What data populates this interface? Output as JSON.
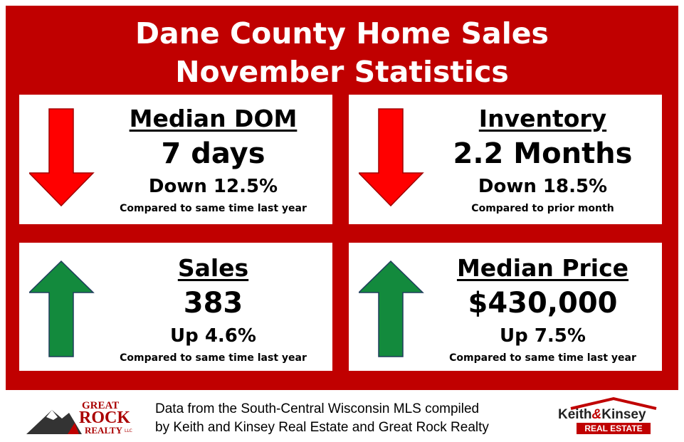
{
  "header": {
    "title_line_1": "Dane County Home Sales",
    "title_line_2": "November Statistics"
  },
  "cards": [
    {
      "title": "Median DOM",
      "value": "7 days",
      "change": "Down 12.5%",
      "note": "Compared to same time last year"
    },
    {
      "title": "Inventory",
      "value": "2.2 Months",
      "change": "Down 18.5%",
      "note": "Compared to prior month"
    },
    {
      "title": "Sales",
      "value": "383",
      "change": "Up 4.6%",
      "note": "Compared to same time last year"
    },
    {
      "title": "Median Price",
      "value": "$430,000",
      "change": "Up 7.5%",
      "note": "Compared to same time last year"
    }
  ],
  "footer": {
    "source_line_1": "Data from the South-Central Wisconsin MLS compiled",
    "source_line_2": "by Keith and Kinsey Real Estate and Great Rock Realty",
    "logo_left": {
      "line_1": "GREAT",
      "line_2": "ROCK",
      "line_3": "REALTY",
      "suffix": "LLC"
    },
    "logo_right": {
      "name_1": "Keith",
      "amp": "&",
      "name_2": "Kinsey",
      "tag": "REAL ESTATE"
    }
  }
}
